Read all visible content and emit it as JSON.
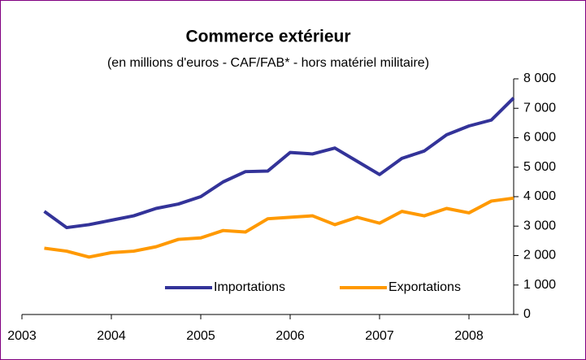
{
  "chart_data": {
    "type": "line",
    "title": "Commerce extérieur",
    "subtitle": "(en millions d'euros - CAF/FAB* - hors matériel militaire)",
    "x": [
      2003.25,
      2003.5,
      2003.75,
      2004,
      2004.25,
      2004.5,
      2004.75,
      2005,
      2005.25,
      2005.5,
      2005.75,
      2006,
      2006.25,
      2006.5,
      2006.75,
      2007,
      2007.25,
      2007.5,
      2007.75,
      2008,
      2008.25,
      2008.5
    ],
    "series": [
      {
        "name": "Importations",
        "color": "#333399",
        "values": [
          3500,
          2950,
          3050,
          3200,
          3350,
          3600,
          3750,
          4000,
          4500,
          4850,
          4870,
          5500,
          5450,
          5650,
          5200,
          4750,
          5300,
          5550,
          6100,
          6400,
          6600,
          7350
        ]
      },
      {
        "name": "Exportations",
        "color": "#ff9900",
        "values": [
          2250,
          2150,
          1950,
          2100,
          2150,
          2300,
          2550,
          2600,
          2850,
          2800,
          3250,
          3300,
          3350,
          3050,
          3300,
          3100,
          3500,
          3350,
          3600,
          3450,
          3850,
          3950
        ]
      }
    ],
    "xlim": [
      2003,
      2008.5
    ],
    "xticks": [
      2003,
      2004,
      2005,
      2006,
      2007,
      2008
    ],
    "ylim": [
      0,
      8000
    ],
    "yticks": [
      0,
      {
        "value": 1000,
        "label": "1 000"
      },
      {
        "value": 2000,
        "label": "2 000"
      },
      {
        "value": 3000,
        "label": "3 000"
      },
      {
        "value": 4000,
        "label": "4 000"
      },
      {
        "value": 5000,
        "label": "5 000"
      },
      {
        "value": 6000,
        "label": "6 000"
      },
      {
        "value": 7000,
        "label": "7 000"
      },
      {
        "value": 8000,
        "label": "8 000"
      }
    ],
    "y_axis_side": "right",
    "legend": "bottom",
    "grid": false
  }
}
